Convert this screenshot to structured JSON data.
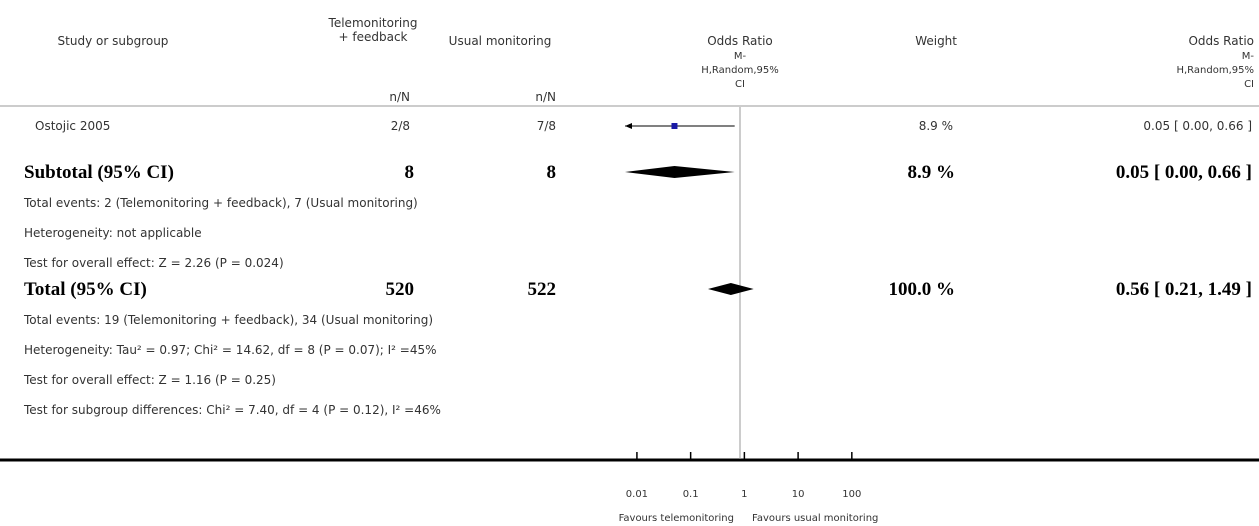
{
  "chart_data": {
    "type": "forest",
    "headers": {
      "study": [
        "Study or subgroup"
      ],
      "group1": [
        "Telemonitoring",
        "+ feedback"
      ],
      "group2": [
        "Usual monitoring"
      ],
      "plot": [
        "Odds Ratio",
        "M-",
        "H,Random,95%",
        "CI"
      ],
      "weight": [
        "Weight"
      ],
      "effect": [
        "Odds Ratio",
        "M-",
        "H,Random,95%",
        "CI"
      ],
      "group1_sub": "n/N",
      "group2_sub": "n/N"
    },
    "studies": [
      {
        "name": "Ostojic 2005",
        "group1": "2/8",
        "group2": "7/8",
        "weight": 8.9,
        "weight_label": "8.9 %",
        "or": 0.05,
        "ci": [
          0.0,
          0.66
        ],
        "or_label": "0.05 [ 0.00, 0.66 ]"
      }
    ],
    "subtotal": {
      "name": "Subtotal (95% CI)",
      "group1": 8,
      "group2": 8,
      "weight": 8.9,
      "weight_label": "8.9 %",
      "or": 0.05,
      "ci": [
        0.0,
        0.66
      ],
      "or_label": "0.05 [ 0.00, 0.66 ]",
      "notes": [
        "Total events: 2 (Telemonitoring + feedback), 7 (Usual monitoring)",
        "Heterogeneity: not applicable",
        "Test for overall effect: Z = 2.26 (P = 0.024)"
      ]
    },
    "total": {
      "name": "Total (95% CI)",
      "group1": 520,
      "group2": 522,
      "weight": 100.0,
      "weight_label": "100.0 %",
      "or": 0.56,
      "ci": [
        0.21,
        1.49
      ],
      "or_label": "0.56 [ 0.21, 1.49 ]",
      "notes": [
        "Total events: 19 (Telemonitoring + feedback), 34 (Usual monitoring)",
        "Heterogeneity: Tau² = 0.97; Chi² = 14.62, df = 8 (P = 0.07); I² =45%",
        "Test for overall effect: Z = 1.16 (P = 0.25)",
        "Test for subgroup differences: Chi² = 7.40, df = 4 (P = 0.12), I² =46%"
      ]
    },
    "log_scale": true,
    "xlim": [
      0.006,
      200
    ],
    "xticks": [
      0.01,
      0.1,
      1,
      10,
      100
    ],
    "xlabel_left": "Favours telemonitoring",
    "xlabel_right": "Favours usual monitoring",
    "color": "#1a1aa6"
  }
}
